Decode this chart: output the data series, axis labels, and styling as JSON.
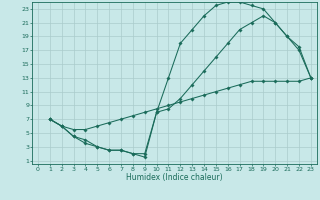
{
  "xlabel": "Humidex (Indice chaleur)",
  "bg_color": "#c8e8e8",
  "grid_color": "#aacccc",
  "line_color": "#1a6b5a",
  "xlim": [
    -0.5,
    23.5
  ],
  "ylim": [
    0.5,
    24.0
  ],
  "xticks": [
    0,
    1,
    2,
    3,
    4,
    5,
    6,
    7,
    8,
    9,
    10,
    11,
    12,
    13,
    14,
    15,
    16,
    17,
    18,
    19,
    20,
    21,
    22,
    23
  ],
  "yticks": [
    1,
    3,
    5,
    7,
    9,
    11,
    13,
    15,
    17,
    19,
    21,
    23
  ],
  "curve1_x": [
    1,
    2,
    3,
    4,
    5,
    6,
    7,
    8,
    9,
    10,
    11,
    12,
    13,
    14,
    15,
    16,
    17,
    18,
    19,
    20,
    21,
    22,
    23
  ],
  "curve1_y": [
    7,
    6,
    4.5,
    4,
    3,
    2.5,
    2.5,
    2,
    1.5,
    8,
    13,
    18,
    20,
    22,
    23.5,
    24,
    24,
    23.5,
    23,
    21,
    19,
    17,
    13
  ],
  "curve2_x": [
    1,
    2,
    3,
    4,
    5,
    6,
    7,
    8,
    9,
    10,
    11,
    12,
    13,
    14,
    15,
    16,
    17,
    18,
    19,
    20,
    21,
    22,
    23
  ],
  "curve2_y": [
    7,
    6,
    4.5,
    3.5,
    3,
    2.5,
    2.5,
    2,
    2,
    8,
    8.5,
    10,
    12,
    14,
    16,
    18,
    20,
    21,
    22,
    21,
    19,
    17.5,
    13
  ],
  "curve3_x": [
    1,
    2,
    3,
    4,
    5,
    6,
    7,
    8,
    9,
    10,
    11,
    12,
    13,
    14,
    15,
    16,
    17,
    18,
    19,
    20,
    21,
    22,
    23
  ],
  "curve3_y": [
    7,
    6,
    5.5,
    5.5,
    6,
    6.5,
    7,
    7.5,
    8,
    8.5,
    9,
    9.5,
    10,
    10.5,
    11,
    11.5,
    12,
    12.5,
    12.5,
    12.5,
    12.5,
    12.5,
    13
  ]
}
